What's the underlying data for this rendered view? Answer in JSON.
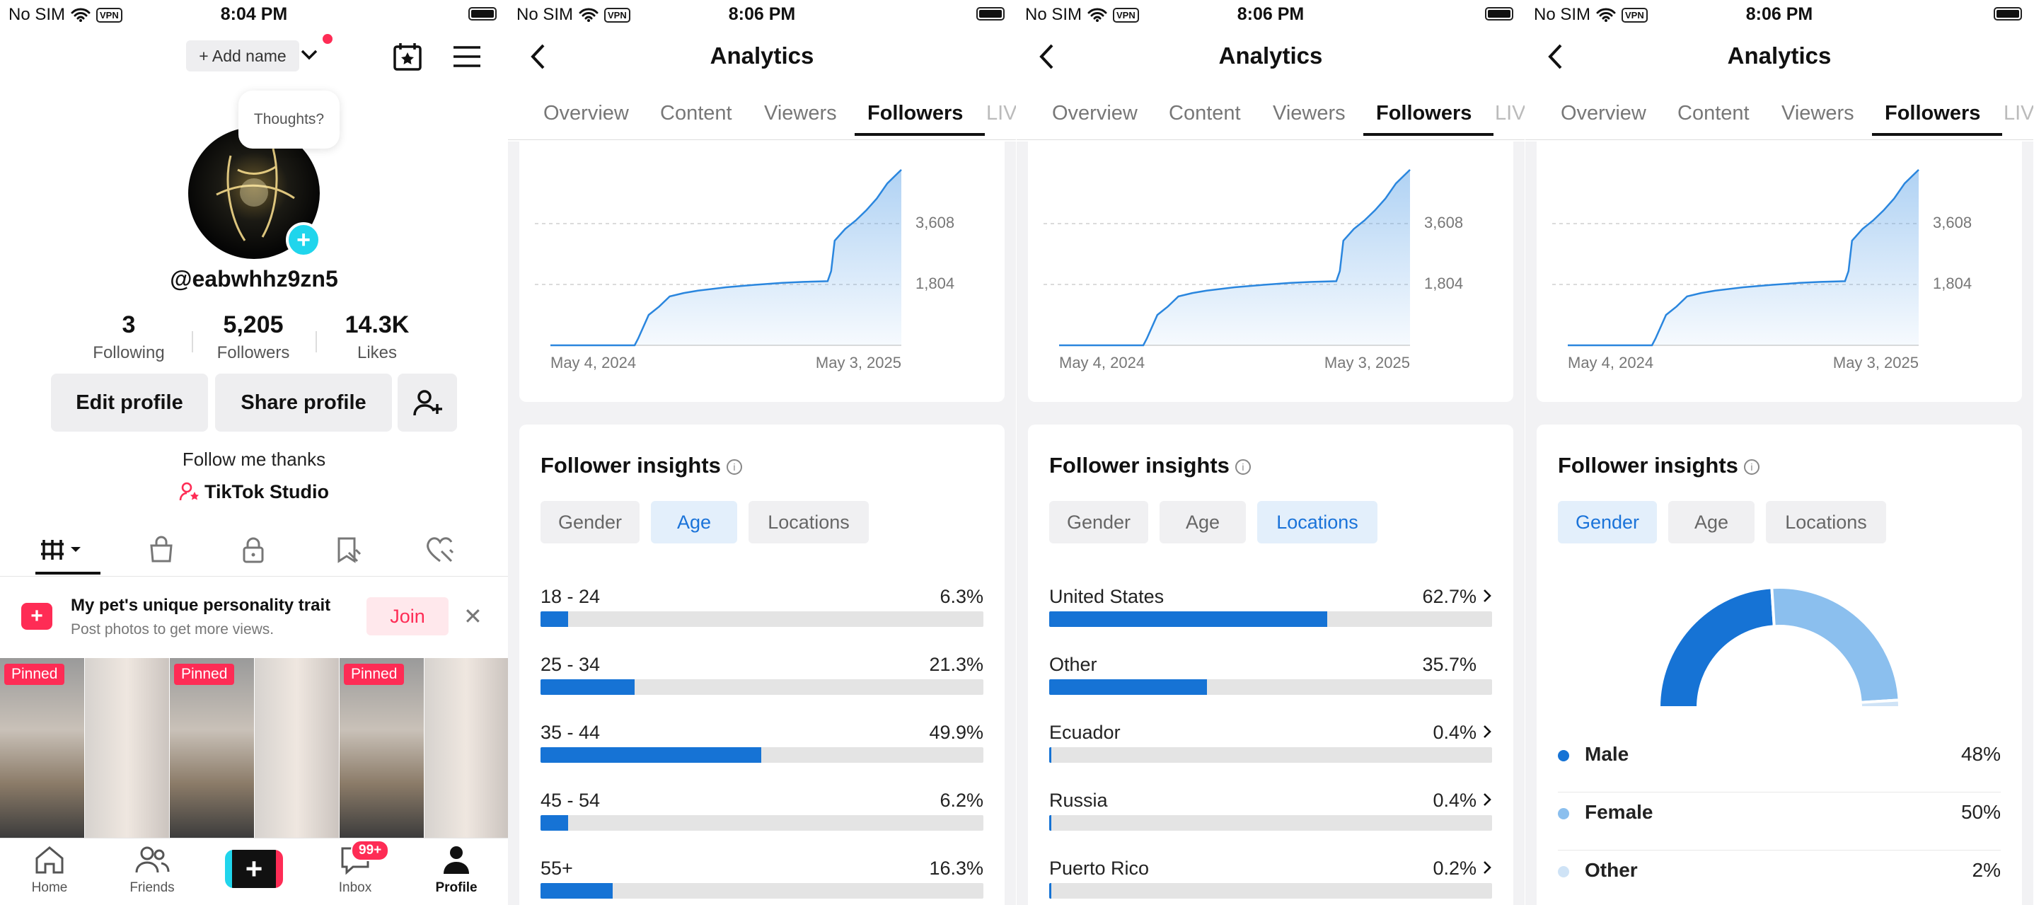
{
  "status": {
    "carrier": "No SIM",
    "vpn": "VPN",
    "times": [
      "8:04 PM",
      "8:06 PM",
      "8:06 PM",
      "8:06 PM"
    ]
  },
  "profile": {
    "add_name": "+ Add name",
    "bubble": "Thoughts?",
    "handle": "@eabwhhz9zn5",
    "stats": [
      {
        "number": "3",
        "label": "Following"
      },
      {
        "number": "5,205",
        "label": "Followers"
      },
      {
        "number": "14.3K",
        "label": "Likes"
      }
    ],
    "edit_button": "Edit profile",
    "share_button": "Share profile",
    "bio": "Follow me thanks",
    "studio": "TikTok Studio",
    "promo": {
      "title": "My pet's unique personality trait",
      "subtitle": "Post photos to get more views.",
      "join": "Join"
    },
    "pinned_label": "Pinned",
    "nav": [
      "Home",
      "Friends",
      "Inbox",
      "Profile"
    ],
    "inbox_badge": "99+"
  },
  "analytics": {
    "title": "Analytics",
    "tabs": [
      "Overview",
      "Content",
      "Viewers",
      "Followers",
      "LIVE"
    ],
    "insights_title": "Follower insights",
    "chips": [
      "Gender",
      "Age",
      "Locations"
    ],
    "accent": "#1673d5",
    "light_accent": "#8bbfee"
  },
  "chart_data": [
    {
      "type": "area",
      "x_labels": [
        "May 4, 2024",
        "May 3, 2025"
      ],
      "y_ticks": [
        "1,804",
        "3,608"
      ],
      "y_tick_values": [
        1804,
        3608
      ],
      "ylim": [
        0,
        5412
      ],
      "x": [
        0,
        0.24,
        0.25,
        0.28,
        0.31,
        0.34,
        0.38,
        0.42,
        0.5,
        0.58,
        0.66,
        0.72,
        0.79,
        0.8,
        0.81,
        0.84,
        0.87,
        0.9,
        0.93,
        0.96,
        1.0
      ],
      "values": [
        0,
        0,
        200,
        900,
        1150,
        1450,
        1550,
        1620,
        1720,
        1790,
        1850,
        1880,
        1900,
        2200,
        3100,
        3450,
        3700,
        4000,
        4350,
        4800,
        5205
      ]
    },
    {
      "type": "bar",
      "title": "Age",
      "categories": [
        "18 - 24",
        "25 - 34",
        "35 - 44",
        "45 - 54",
        "55+"
      ],
      "values": [
        6.3,
        21.3,
        49.9,
        6.2,
        16.3
      ],
      "labels": [
        "6.3%",
        "21.3%",
        "49.9%",
        "6.2%",
        "16.3%"
      ]
    },
    {
      "type": "bar",
      "title": "Locations",
      "categories": [
        "United States",
        "Other",
        "Ecuador",
        "Russia",
        "Puerto Rico"
      ],
      "values": [
        62.7,
        35.7,
        0.4,
        0.4,
        0.2
      ],
      "labels": [
        "62.7%",
        "35.7%",
        "0.4%",
        "0.4%",
        "0.2%"
      ],
      "chevron": [
        true,
        false,
        true,
        true,
        true
      ]
    },
    {
      "type": "pie",
      "title": "Gender",
      "categories": [
        "Male",
        "Female",
        "Other"
      ],
      "values": [
        48,
        50,
        2
      ],
      "labels": [
        "48%",
        "50%",
        "2%"
      ],
      "colors": [
        "#1673d5",
        "#8bbfee",
        "#cfe3f6"
      ]
    }
  ]
}
